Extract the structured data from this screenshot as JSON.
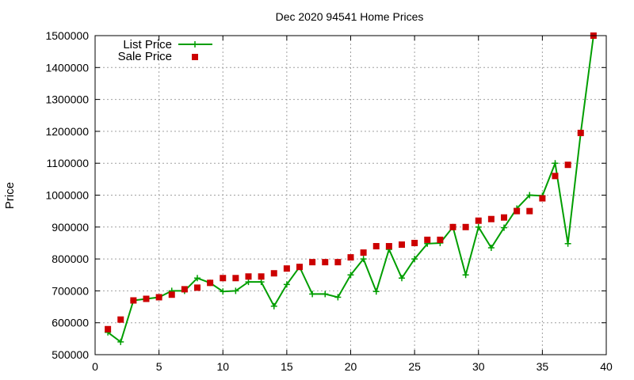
{
  "chart_data": {
    "type": "line",
    "title": "Dec 2020 94541 Home Prices",
    "xlabel": "",
    "ylabel": "Price",
    "xlim": [
      0,
      40
    ],
    "ylim": [
      500000,
      1500000
    ],
    "xticks": [
      0,
      5,
      10,
      15,
      20,
      25,
      30,
      35,
      40
    ],
    "yticks": [
      500000,
      600000,
      700000,
      800000,
      900000,
      1000000,
      1100000,
      1200000,
      1300000,
      1400000,
      1500000
    ],
    "grid": true,
    "legend_position": "top-left",
    "x": [
      1,
      2,
      3,
      4,
      5,
      6,
      7,
      8,
      9,
      10,
      11,
      12,
      13,
      14,
      15,
      16,
      17,
      18,
      19,
      20,
      21,
      22,
      23,
      24,
      25,
      26,
      27,
      28,
      29,
      30,
      31,
      32,
      33,
      34,
      35,
      36,
      37,
      38,
      39
    ],
    "series": [
      {
        "name": "List Price",
        "style": "lines+crosses",
        "color": "#009e00",
        "values": [
          570000,
          540000,
          670000,
          675000,
          680000,
          700000,
          700000,
          740000,
          725000,
          698000,
          700000,
          728000,
          728000,
          652000,
          720000,
          775000,
          690000,
          690000,
          680000,
          750000,
          800000,
          698000,
          830000,
          740000,
          800000,
          848000,
          850000,
          900000,
          750000,
          900000,
          835000,
          898000,
          958000,
          1000000,
          998000,
          1100000,
          848000,
          1195000,
          1500000
        ]
      },
      {
        "name": "Sale Price",
        "style": "squares",
        "color": "#cc0000",
        "values": [
          580000,
          610000,
          670000,
          675000,
          680000,
          688000,
          705000,
          710000,
          725000,
          740000,
          740000,
          745000,
          745000,
          755000,
          770000,
          775000,
          790000,
          790000,
          790000,
          805000,
          820000,
          840000,
          840000,
          845000,
          850000,
          860000,
          860000,
          900000,
          900000,
          920000,
          925000,
          930000,
          950000,
          950000,
          990000,
          1060000,
          1095000,
          1195000,
          1500000
        ]
      }
    ]
  }
}
